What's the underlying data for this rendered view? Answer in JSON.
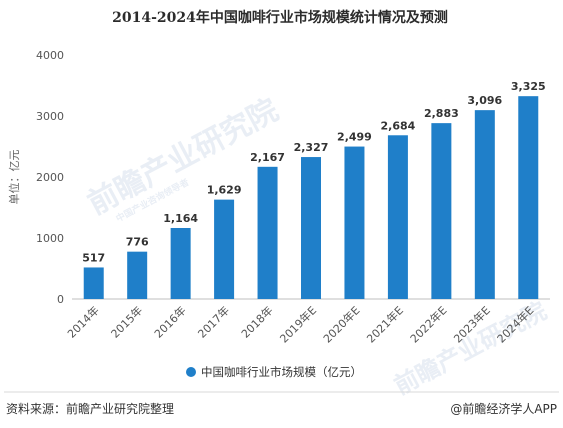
{
  "chart_data": {
    "type": "bar",
    "title": "2014-2024年中国咖啡行业市场规模统计情况及预测",
    "ylabel": "单位：亿元",
    "categories": [
      "2014年",
      "2015年",
      "2016年",
      "2017年",
      "2018年",
      "2019年E",
      "2020年E",
      "2021年E",
      "2022年E",
      "2023年E",
      "2024年E"
    ],
    "series": [
      {
        "name": "中国咖啡行业市场规模（亿元）",
        "values": [
          517,
          776,
          1164,
          1629,
          2167,
          2327,
          2499,
          2684,
          2883,
          3096,
          3325
        ]
      }
    ],
    "data_labels": [
      "517",
      "776",
      "1,164",
      "1,629",
      "2,167",
      "2,327",
      "2,499",
      "2,684",
      "2,883",
      "3,096",
      "3,325"
    ],
    "ylim": [
      0,
      4000
    ],
    "yticks": [
      0,
      1000,
      2000,
      3000,
      4000
    ],
    "grid": false,
    "legend_position": "bottom-center",
    "bar_color": "#1f7fc9"
  },
  "footer": {
    "source": "资料来源：前瞻产业研究院整理",
    "brand": "@前瞻经济学人APP"
  },
  "watermark": {
    "text": "前瞻产业研究院",
    "subtext": "中国产业咨询领导者"
  }
}
